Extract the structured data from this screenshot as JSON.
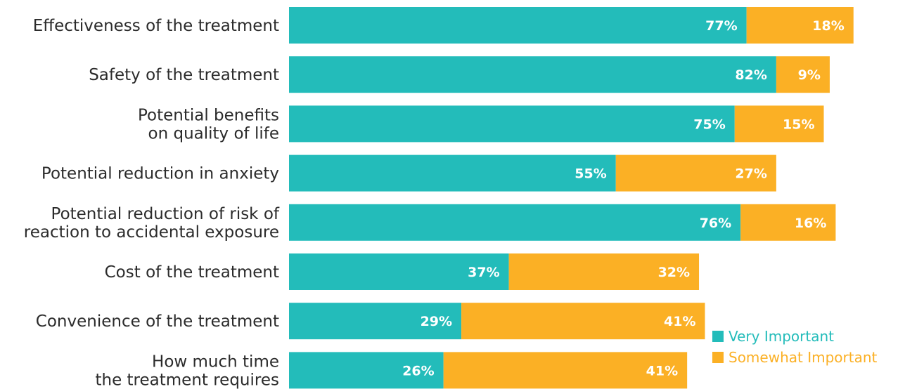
{
  "chart_data": {
    "type": "bar",
    "orientation": "horizontal",
    "stacked": true,
    "categories": [
      [
        "Effectiveness of the treatment"
      ],
      [
        "Safety of the treatment"
      ],
      [
        "Potential benefits",
        "on quality of life"
      ],
      [
        "Potential reduction in anxiety"
      ],
      [
        "Potential reduction of risk of",
        "reaction to accidental exposure"
      ],
      [
        "Cost of the treatment"
      ],
      [
        "Convenience of the treatment"
      ],
      [
        "How much time",
        "the treatment requires"
      ]
    ],
    "series": [
      {
        "name": "Very Important",
        "color": "#23bcba",
        "values": [
          77,
          82,
          75,
          55,
          76,
          37,
          29,
          26
        ],
        "labels": [
          "77%",
          "82%",
          "75%",
          "55%",
          "76%",
          "37%",
          "29%",
          "26%"
        ]
      },
      {
        "name": "Somewhat Important",
        "color": "#fbb025",
        "values": [
          18,
          9,
          15,
          27,
          16,
          32,
          41,
          41
        ],
        "labels": [
          "18%",
          "9%",
          "15%",
          "27%",
          "16%",
          "32%",
          "41%",
          "41%"
        ]
      }
    ],
    "xlim": [
      0,
      100
    ],
    "grid": false,
    "legend_position": "bottom-right",
    "title": "",
    "xlabel": "",
    "ylabel": ""
  }
}
